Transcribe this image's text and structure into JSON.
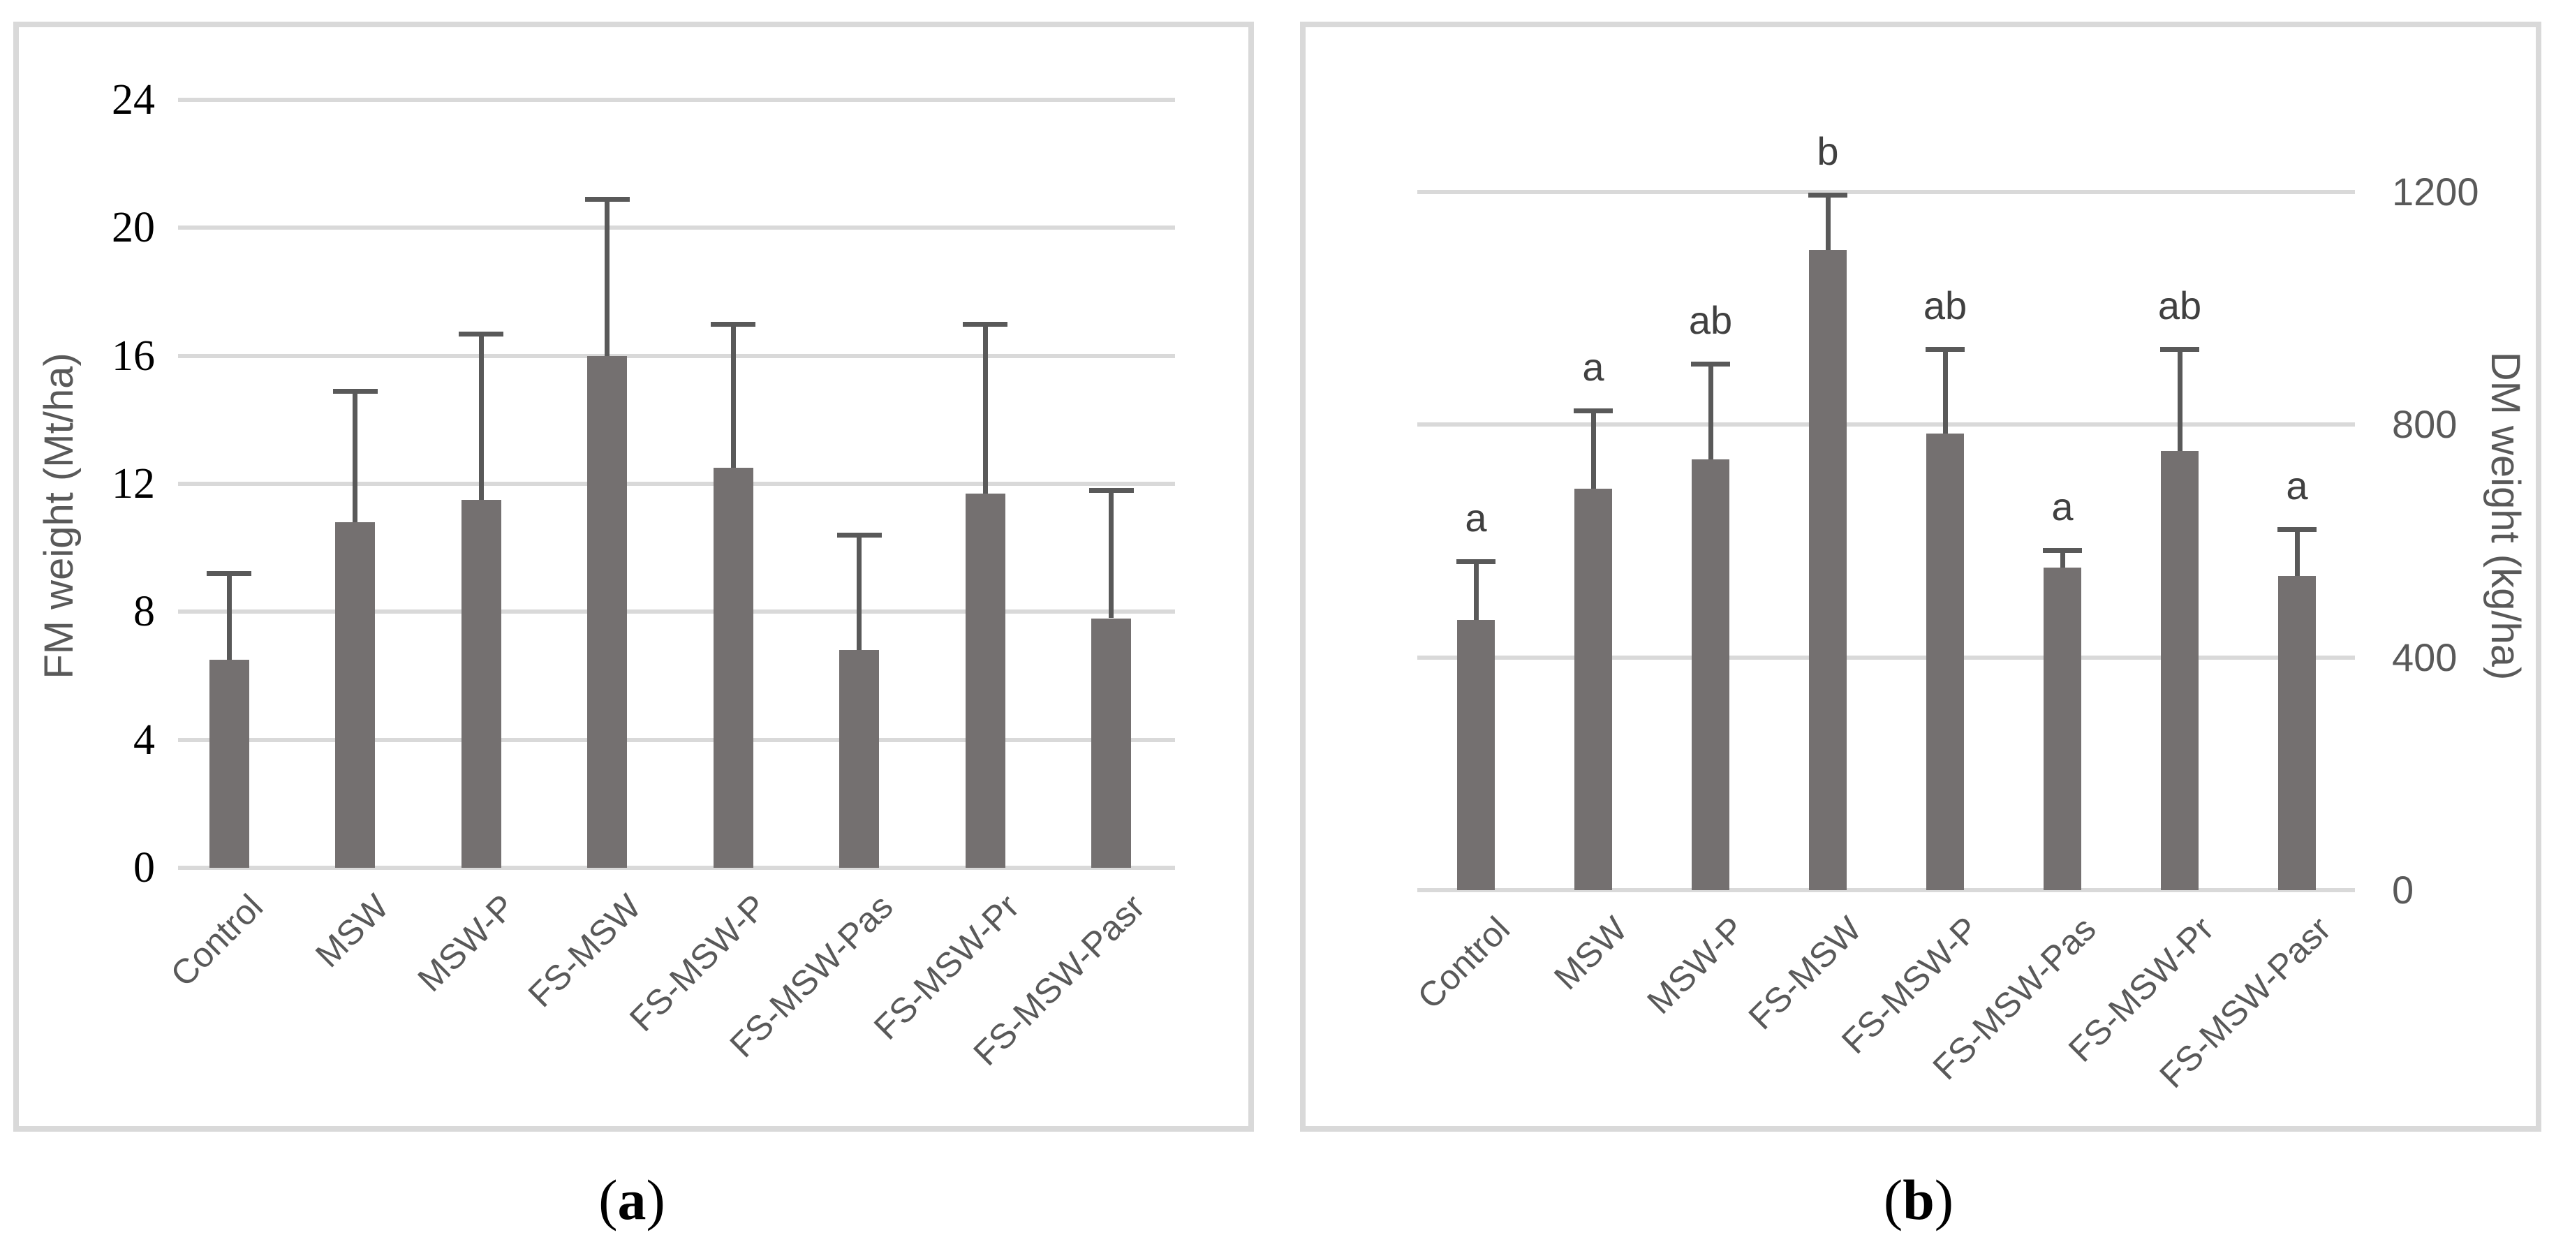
{
  "figure": {
    "captions": [
      {
        "pre": "(",
        "letter": "a",
        "post": ")"
      },
      {
        "pre": "(",
        "letter": "b",
        "post": ")"
      }
    ]
  },
  "colors": {
    "bar": "#747070",
    "error": "#595959",
    "grid": "#d9d9d9",
    "border": "#d9d9d9",
    "axis-black": "#000000",
    "gray-text": "#595959",
    "letter": "#404040"
  },
  "chart_data": [
    {
      "type": "bar",
      "panel": "a",
      "title": "",
      "xlabel": "",
      "ylabel": "FM weight (Mt/ha)",
      "axis_side": "left",
      "categories": [
        "Control",
        "MSW",
        "MSW-P",
        "FS-MSW",
        "FS-MSW-P",
        "FS-MSW-Pas",
        "FS-MSW-Pr",
        "FS-MSW-Pasr"
      ],
      "values": [
        6.5,
        10.8,
        11.5,
        16.0,
        12.5,
        6.8,
        11.7,
        7.8
      ],
      "error_upper": [
        9.2,
        14.9,
        16.7,
        20.9,
        17.0,
        10.4,
        17.0,
        11.8
      ],
      "yticks": [
        0,
        4,
        8,
        12,
        16,
        20,
        24
      ],
      "ylim": [
        0,
        24
      ],
      "grid": true,
      "legend": "none",
      "caption": "(a)"
    },
    {
      "type": "bar",
      "panel": "b",
      "title": "",
      "xlabel": "",
      "ylabel": "DM weight (kg/ha)",
      "axis_side": "right",
      "categories": [
        "Control",
        "MSW",
        "MSW-P",
        "FS-MSW",
        "FS-MSW-P",
        "FS-MSW-Pas",
        "FS-MSW-Pr",
        "FS-MSW-Pasr"
      ],
      "values": [
        465,
        690,
        740,
        1100,
        785,
        555,
        755,
        540
      ],
      "error_upper": [
        565,
        825,
        905,
        1195,
        930,
        585,
        930,
        620
      ],
      "sig_letters": [
        "a",
        "a",
        "ab",
        "b",
        "ab",
        "a",
        "ab",
        "a"
      ],
      "yticks": [
        0,
        400,
        800,
        1200
      ],
      "ylim": [
        0,
        1200
      ],
      "grid": true,
      "legend": "none",
      "caption": "(b)"
    }
  ]
}
